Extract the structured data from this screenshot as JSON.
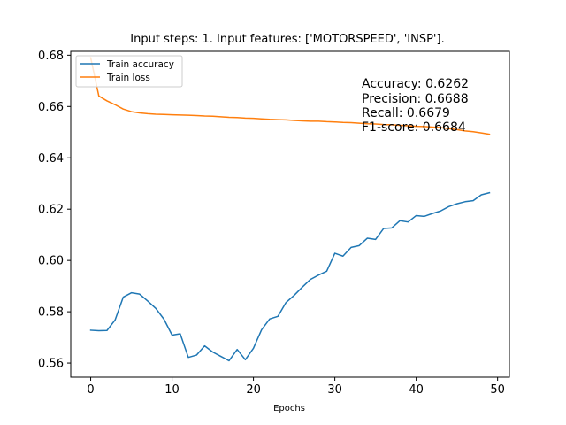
{
  "chart_data": {
    "type": "line",
    "title": "Input steps: 1. Input features: ['MOTORSPEED', 'INSP'].",
    "xlabel": "Epochs",
    "ylabel": "",
    "xlim": [
      -2.45,
      51.45
    ],
    "ylim": [
      0.5545,
      0.6815
    ],
    "x_ticks": [
      0,
      10,
      20,
      30,
      40,
      50
    ],
    "y_ticks": [
      0.56,
      0.58,
      0.6,
      0.62,
      0.64,
      0.66,
      0.68
    ],
    "y_tick_labels": [
      "0.56",
      "0.58",
      "0.60",
      "0.62",
      "0.64",
      "0.66",
      "0.68"
    ],
    "grid": false,
    "legend_position": "upper-left",
    "x": [
      0,
      1,
      2,
      3,
      4,
      5,
      6,
      7,
      8,
      9,
      10,
      11,
      12,
      13,
      14,
      15,
      16,
      17,
      18,
      19,
      20,
      21,
      22,
      23,
      24,
      25,
      26,
      27,
      28,
      29,
      30,
      31,
      32,
      33,
      34,
      35,
      36,
      37,
      38,
      39,
      40,
      41,
      42,
      43,
      44,
      45,
      46,
      47,
      48,
      49
    ],
    "series": [
      {
        "name": "Train accuracy",
        "color": "#1f77b4",
        "values": [
          0.5728,
          0.5726,
          0.5727,
          0.5768,
          0.5857,
          0.5874,
          0.5869,
          0.5842,
          0.5813,
          0.5771,
          0.5709,
          0.5714,
          0.5622,
          0.5631,
          0.5667,
          0.5643,
          0.5626,
          0.5609,
          0.5653,
          0.5613,
          0.5658,
          0.573,
          0.5772,
          0.5782,
          0.5836,
          0.5864,
          0.5896,
          0.5926,
          0.5943,
          0.5958,
          0.6028,
          0.6017,
          0.6051,
          0.6058,
          0.6087,
          0.6082,
          0.6125,
          0.6127,
          0.6155,
          0.615,
          0.6175,
          0.6172,
          0.6183,
          0.6193,
          0.621,
          0.6221,
          0.6229,
          0.6233,
          0.6256,
          0.6264
        ]
      },
      {
        "name": "Train loss",
        "color": "#ff7f0e",
        "values": [
          0.679,
          0.6641,
          0.6622,
          0.6607,
          0.659,
          0.658,
          0.6575,
          0.6572,
          0.657,
          0.6569,
          0.6568,
          0.6567,
          0.6566,
          0.6565,
          0.6563,
          0.6562,
          0.656,
          0.6558,
          0.6557,
          0.6555,
          0.6554,
          0.6552,
          0.655,
          0.6549,
          0.6548,
          0.6546,
          0.6544,
          0.6543,
          0.6543,
          0.6541,
          0.654,
          0.6538,
          0.6537,
          0.6535,
          0.6533,
          0.6532,
          0.653,
          0.6529,
          0.6527,
          0.6525,
          0.6523,
          0.6522,
          0.652,
          0.6518,
          0.6514,
          0.651,
          0.6505,
          0.6502,
          0.6497,
          0.6492
        ]
      }
    ],
    "annotations": [
      "Accuracy: 0.6262",
      "Precision: 0.6688",
      "Recall: 0.6679",
      "F1-score: 0.6684"
    ]
  }
}
